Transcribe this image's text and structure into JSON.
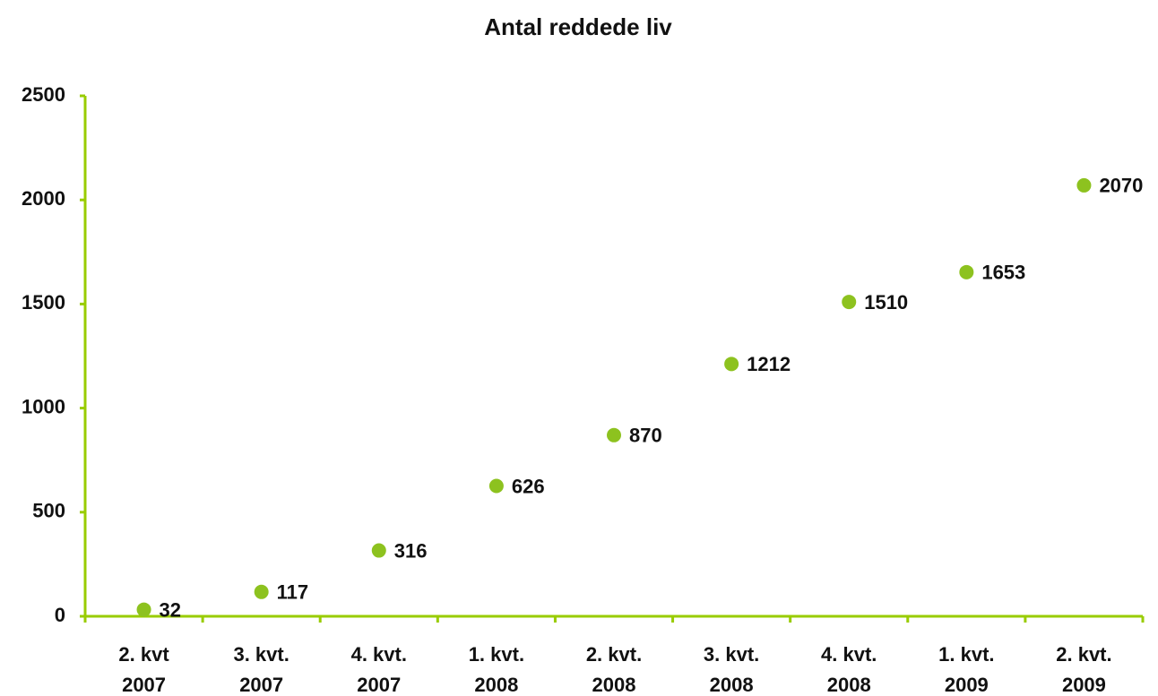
{
  "chart_data": {
    "type": "scatter",
    "title": "Antal reddede liv",
    "categories": [
      [
        "2. kvt",
        "2007"
      ],
      [
        "3. kvt.",
        "2007"
      ],
      [
        "4. kvt.",
        "2007"
      ],
      [
        "1. kvt.",
        "2008"
      ],
      [
        "2. kvt.",
        "2008"
      ],
      [
        "3. kvt.",
        "2008"
      ],
      [
        "4. kvt.",
        "2008"
      ],
      [
        "1. kvt.",
        "2009"
      ],
      [
        "2. kvt.",
        "2009"
      ]
    ],
    "values": [
      32,
      117,
      316,
      626,
      870,
      1212,
      1510,
      1653,
      2070
    ],
    "color": "#8dc21f",
    "axis_color": "#99cc00",
    "ylim": [
      0,
      2500
    ],
    "yticks": [
      0,
      500,
      1000,
      1500,
      2000,
      2500
    ],
    "grid": false
  }
}
